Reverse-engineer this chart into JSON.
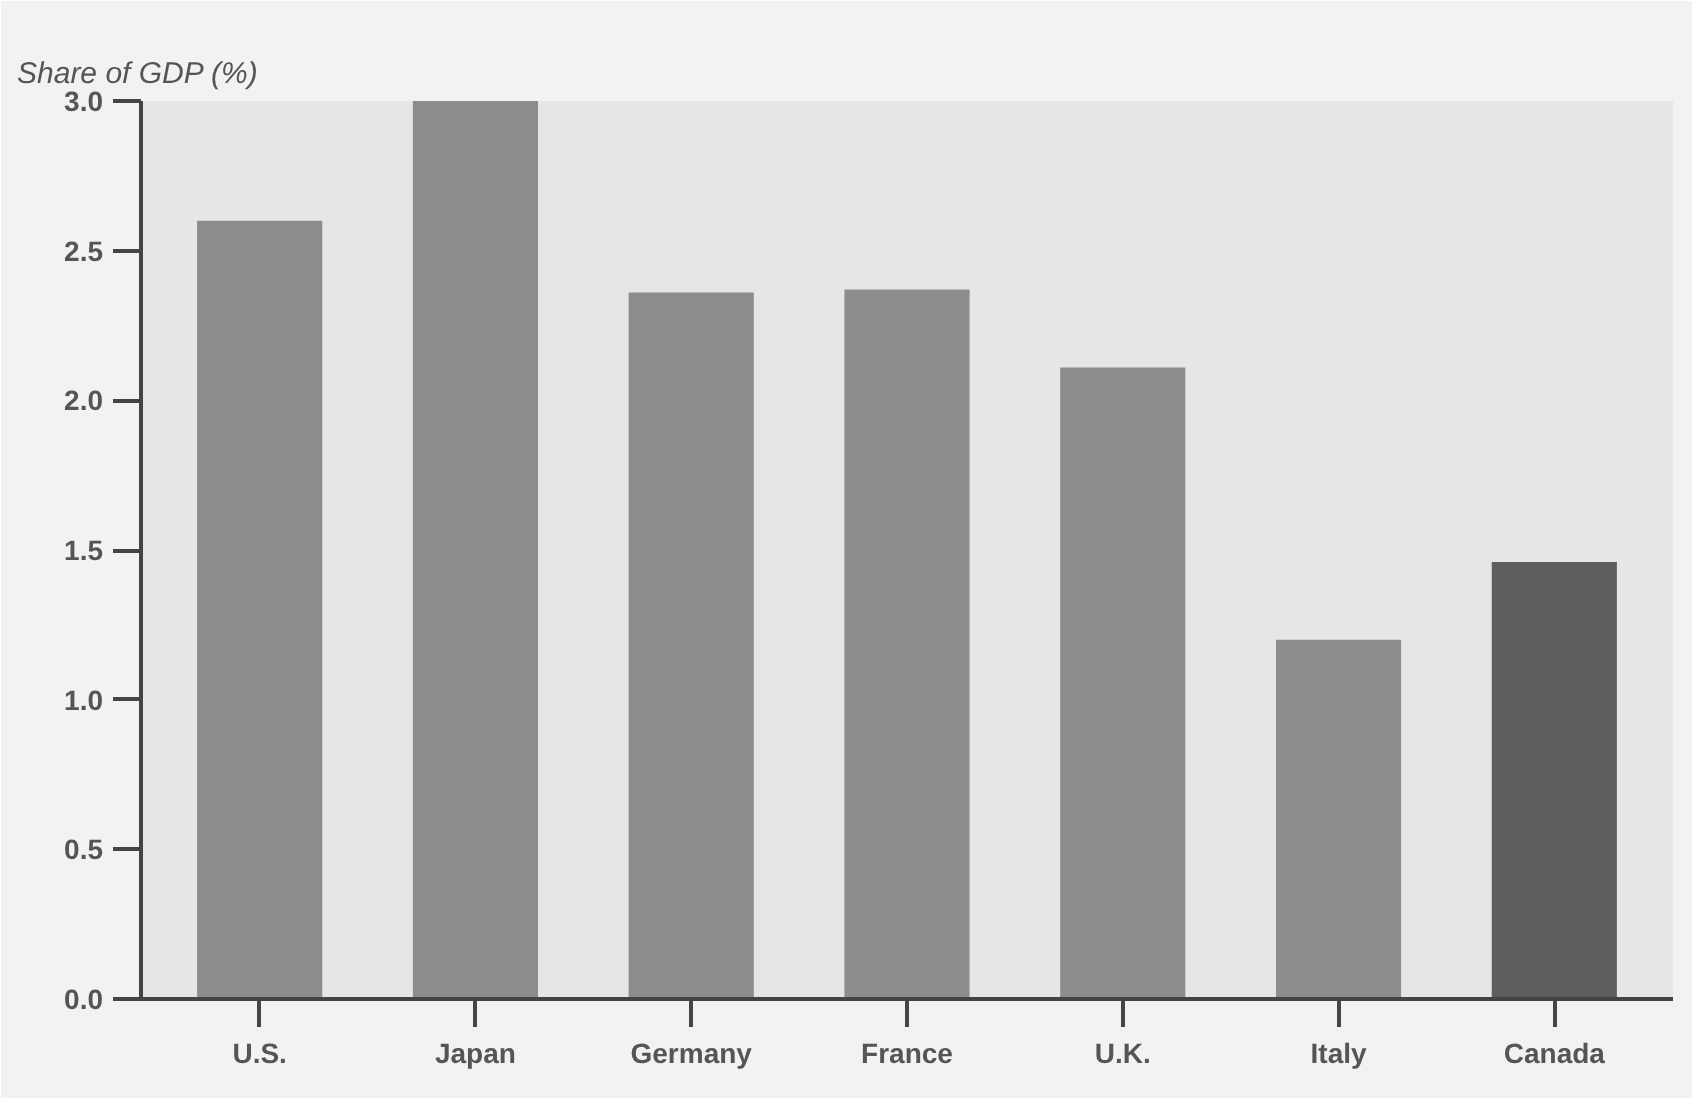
{
  "chart_data": {
    "type": "bar",
    "ylabel": "Share of GDP (%)",
    "categories": [
      "U.S.",
      "Japan",
      "Germany",
      "France",
      "U.K.",
      "Italy",
      "Canada"
    ],
    "values": [
      2.6,
      3.0,
      2.36,
      2.37,
      2.11,
      1.2,
      1.46
    ],
    "colors": [
      "#8c8c8c",
      "#8c8c8c",
      "#8c8c8c",
      "#8c8c8c",
      "#8c8c8c",
      "#8c8c8c",
      "#5e5e5e"
    ],
    "ylim": [
      0,
      3.0
    ],
    "yticks": [
      {
        "value": 0,
        "label": "0.0"
      },
      {
        "value": 0.5,
        "label": "0.5"
      },
      {
        "value": 1.0,
        "label": "1.0"
      },
      {
        "value": 1.5,
        "label": "1.5"
      },
      {
        "value": 2.0,
        "label": "2.0"
      },
      {
        "value": 2.5,
        "label": "2.5"
      },
      {
        "value": 3.0,
        "label": "3.0"
      }
    ]
  }
}
